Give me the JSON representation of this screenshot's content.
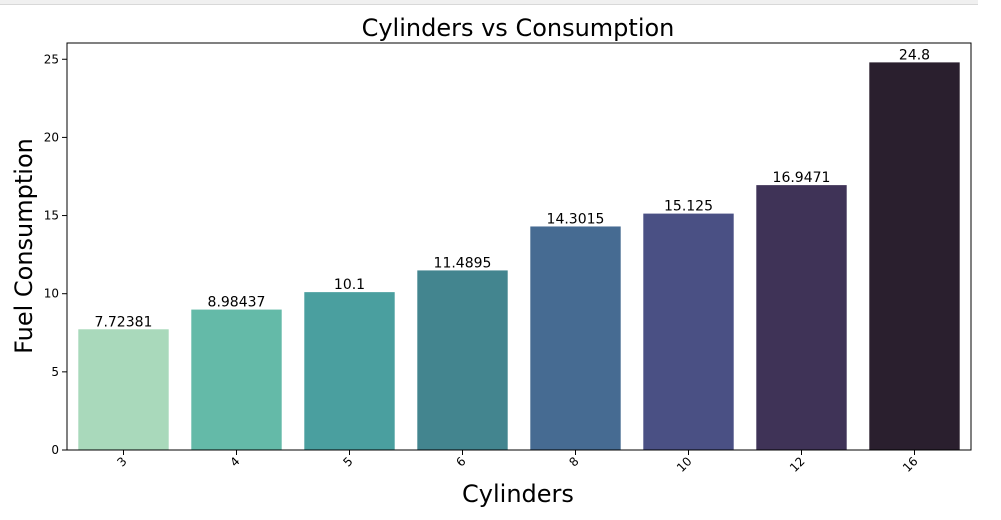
{
  "chart_data": {
    "type": "bar",
    "title": "Cylinders vs Consumption",
    "xlabel": "Cylinders",
    "ylabel": "Fuel Consumption",
    "categories": [
      "3",
      "4",
      "5",
      "6",
      "8",
      "10",
      "12",
      "16"
    ],
    "values": [
      7.72381,
      8.98437,
      10.1,
      11.4895,
      14.3015,
      15.125,
      16.9471,
      24.8
    ],
    "value_labels": [
      "7.72381",
      "8.98437",
      "10.1",
      "11.4895",
      "14.3015",
      "15.125",
      "16.9471",
      "24.8"
    ],
    "ylim": [
      0,
      26.04
    ],
    "yticks": [
      0,
      5,
      10,
      15,
      20,
      25
    ],
    "colors": [
      "#a9d9bb",
      "#64baa8",
      "#4a9f9f",
      "#43858f",
      "#466b92",
      "#4a5084",
      "#3f3357",
      "#2a1f2e"
    ],
    "grid": false,
    "legend": "none"
  }
}
